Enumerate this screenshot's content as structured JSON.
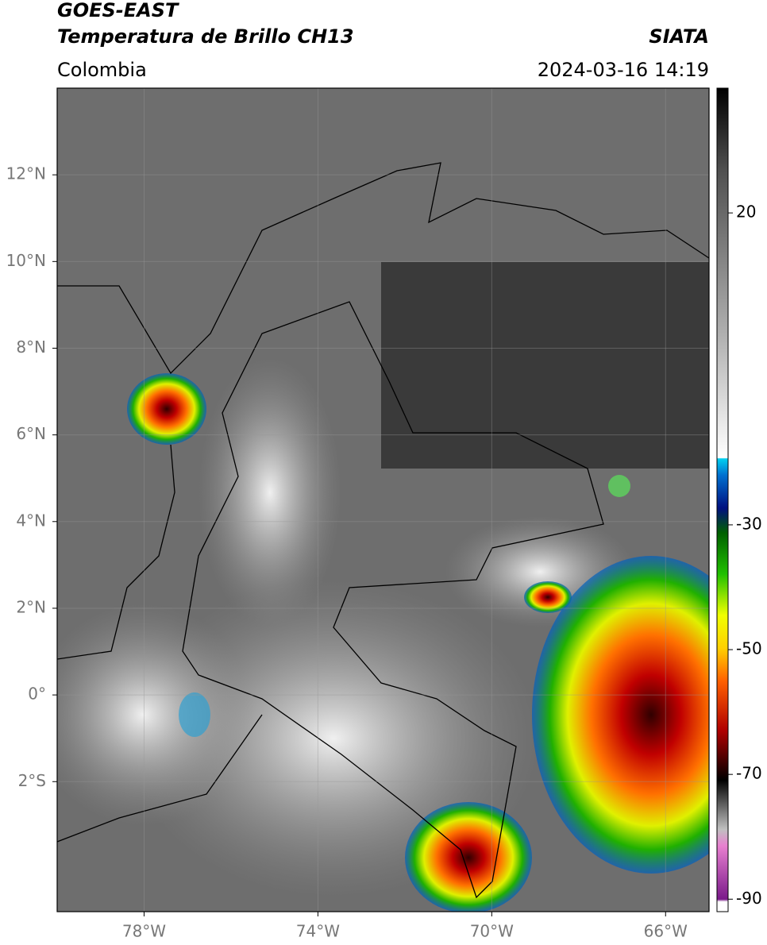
{
  "header": {
    "title_line1": "GOES-EAST",
    "title_line2": "Temperatura de Brillo CH13",
    "source": "SIATA",
    "region": "Colombia",
    "datetime": "2024-03-16 14:19"
  },
  "map": {
    "xlim": [
      -80,
      -65
    ],
    "ylim": [
      -5,
      14
    ],
    "xticks": [
      {
        "value": -78,
        "label": "78°W"
      },
      {
        "value": -74,
        "label": "74°W"
      },
      {
        "value": -70,
        "label": "70°W"
      },
      {
        "value": -66,
        "label": "66°W"
      }
    ],
    "yticks": [
      {
        "value": 12,
        "label": "12°N"
      },
      {
        "value": 10,
        "label": "10°N"
      },
      {
        "value": 8,
        "label": "8°N"
      },
      {
        "value": 6,
        "label": "6°N"
      },
      {
        "value": 4,
        "label": "4°N"
      },
      {
        "value": 2,
        "label": "2°N"
      },
      {
        "value": 0,
        "label": "0°"
      },
      {
        "value": -2,
        "label": "2°S"
      }
    ]
  },
  "colorbar": {
    "lim": [
      -92,
      40
    ],
    "ticks": [
      20,
      -30,
      -50,
      -70,
      -90
    ]
  }
}
